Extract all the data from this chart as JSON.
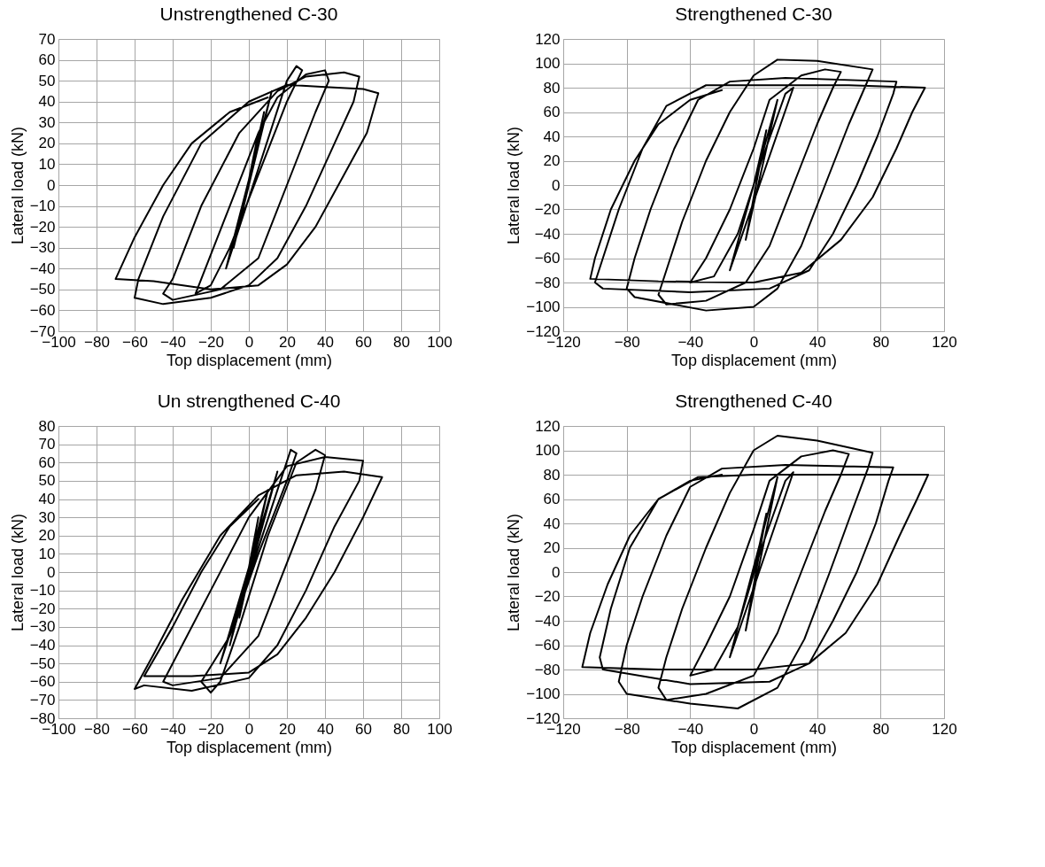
{
  "chart_data": [
    {
      "type": "line",
      "title": "Unstrengthened C-30",
      "xlabel": "Top displacement (mm)",
      "ylabel": "Lateral load (kN)",
      "color": "#000000",
      "grid": true,
      "xlim": [
        -100,
        100
      ],
      "ylim": [
        -70,
        70
      ],
      "xticks": [
        -100,
        -80,
        -60,
        -40,
        -20,
        0,
        20,
        40,
        60,
        80,
        100
      ],
      "yticks": [
        -70,
        -60,
        -50,
        -40,
        -30,
        -20,
        -10,
        0,
        10,
        20,
        30,
        40,
        50,
        60,
        70
      ],
      "x": [
        0,
        5,
        -5,
        8,
        -8,
        12,
        -12,
        20,
        25,
        28,
        20,
        5,
        -10,
        -20,
        -28,
        -25,
        -10,
        5,
        15,
        30,
        40,
        42,
        35,
        20,
        5,
        -15,
        -40,
        -45,
        -40,
        -25,
        -5,
        15,
        30,
        50,
        58,
        55,
        45,
        30,
        15,
        0,
        -20,
        -45,
        -60,
        -58,
        -45,
        -25,
        0,
        20,
        40,
        60,
        68,
        62,
        50,
        35,
        20,
        5,
        -20,
        -50,
        -70,
        -60,
        -45,
        -30,
        -10,
        10
      ],
      "values": [
        0,
        25,
        -20,
        35,
        -30,
        45,
        -40,
        50,
        57,
        55,
        40,
        5,
        -30,
        -48,
        -52,
        -45,
        -10,
        25,
        42,
        53,
        55,
        50,
        35,
        0,
        -35,
        -50,
        -55,
        -52,
        -45,
        -10,
        25,
        45,
        52,
        54,
        52,
        40,
        20,
        -10,
        -35,
        -48,
        -54,
        -57,
        -54,
        -45,
        -15,
        20,
        40,
        48,
        47,
        46,
        44,
        25,
        5,
        -20,
        -38,
        -48,
        -50,
        -46,
        -45,
        -25,
        0,
        20,
        35,
        42
      ]
    },
    {
      "type": "line",
      "title": "Strengthened C-30",
      "xlabel": "Top displacement (mm)",
      "ylabel": "Lateral load (kN)",
      "color": "#000000",
      "grid": true,
      "xlim": [
        -120,
        120
      ],
      "ylim": [
        -120,
        120
      ],
      "xticks": [
        -120,
        -80,
        -40,
        0,
        40,
        80,
        120
      ],
      "yticks": [
        -120,
        -100,
        -80,
        -60,
        -40,
        -20,
        0,
        20,
        40,
        60,
        80,
        100,
        120
      ],
      "x": [
        0,
        8,
        -5,
        15,
        -15,
        25,
        20,
        5,
        -10,
        -25,
        -40,
        -30,
        -15,
        0,
        10,
        30,
        45,
        55,
        50,
        40,
        25,
        10,
        -5,
        -30,
        -55,
        -60,
        -55,
        -45,
        -30,
        -15,
        0,
        15,
        40,
        75,
        70,
        60,
        45,
        30,
        15,
        0,
        -30,
        -75,
        -80,
        -75,
        -65,
        -50,
        -35,
        -15,
        20,
        90,
        88,
        78,
        65,
        50,
        35,
        10,
        -40,
        -95,
        -100,
        -95,
        -85,
        -70,
        -55,
        -30,
        0,
        60,
        108,
        100,
        90,
        75,
        55,
        30,
        0,
        -60,
        -103,
        -100,
        -90,
        -75,
        -60,
        -40,
        -20
      ],
      "values": [
        0,
        45,
        -45,
        70,
        -70,
        80,
        75,
        20,
        -40,
        -75,
        -80,
        -60,
        -20,
        30,
        70,
        90,
        95,
        93,
        80,
        50,
        0,
        -50,
        -80,
        -95,
        -98,
        -90,
        -70,
        -30,
        20,
        60,
        90,
        103,
        102,
        95,
        80,
        50,
        0,
        -50,
        -85,
        -100,
        -103,
        -92,
        -85,
        -60,
        -20,
        30,
        70,
        85,
        88,
        85,
        75,
        40,
        0,
        -40,
        -70,
        -85,
        -88,
        -85,
        -80,
        -60,
        -20,
        30,
        65,
        82,
        82,
        82,
        80,
        60,
        30,
        -10,
        -45,
        -72,
        -80,
        -79,
        -77,
        -60,
        -20,
        20,
        50,
        70,
        78
      ]
    },
    {
      "type": "line",
      "title": "Un strengthened C-40",
      "xlabel": "Top displacement (mm)",
      "ylabel": "Lateral load (kN)",
      "color": "#000000",
      "grid": true,
      "xlim": [
        -100,
        100
      ],
      "ylim": [
        -80,
        80
      ],
      "xticks": [
        -100,
        -80,
        -60,
        -40,
        -20,
        0,
        20,
        40,
        60,
        80,
        100
      ],
      "yticks": [
        -80,
        -70,
        -60,
        -50,
        -40,
        -30,
        -20,
        -10,
        0,
        10,
        20,
        30,
        40,
        50,
        60,
        70,
        80
      ],
      "x": [
        0,
        5,
        -5,
        10,
        -10,
        15,
        -15,
        22,
        25,
        20,
        5,
        -10,
        -25,
        -20,
        -15,
        -5,
        10,
        25,
        35,
        40,
        35,
        20,
        5,
        -15,
        -40,
        -45,
        -35,
        -20,
        0,
        20,
        40,
        60,
        58,
        45,
        30,
        15,
        0,
        -30,
        -55,
        -60,
        -50,
        -35,
        -15,
        5,
        25,
        50,
        70,
        60,
        45,
        30,
        15,
        0,
        -30,
        -55,
        -40,
        -25,
        -10,
        5
      ],
      "values": [
        0,
        30,
        -25,
        45,
        -40,
        55,
        -50,
        67,
        65,
        50,
        10,
        -35,
        -60,
        -66,
        -60,
        -30,
        20,
        60,
        67,
        64,
        45,
        5,
        -35,
        -58,
        -62,
        -60,
        -40,
        -10,
        30,
        58,
        63,
        61,
        50,
        25,
        -10,
        -40,
        -58,
        -65,
        -62,
        -64,
        -45,
        -15,
        20,
        42,
        53,
        55,
        52,
        30,
        0,
        -25,
        -45,
        -55,
        -57,
        -57,
        -30,
        0,
        25,
        40
      ]
    },
    {
      "type": "line",
      "title": "Strengthened C-40",
      "xlabel": "Top displacement (mm)",
      "ylabel": "Lateral load (kN)",
      "color": "#000000",
      "grid": true,
      "xlim": [
        -120,
        120
      ],
      "ylim": [
        -120,
        120
      ],
      "xticks": [
        -120,
        -80,
        -40,
        0,
        40,
        80,
        120
      ],
      "yticks": [
        -120,
        -100,
        -80,
        -60,
        -40,
        -20,
        0,
        20,
        40,
        60,
        80,
        100,
        120
      ],
      "x": [
        0,
        8,
        -5,
        15,
        -15,
        25,
        20,
        5,
        -10,
        -25,
        -40,
        -30,
        -15,
        0,
        10,
        30,
        50,
        60,
        55,
        45,
        30,
        15,
        0,
        -30,
        -55,
        -60,
        -55,
        -45,
        -30,
        -15,
        0,
        15,
        40,
        75,
        72,
        62,
        48,
        32,
        15,
        -10,
        -40,
        -80,
        -85,
        -80,
        -70,
        -55,
        -40,
        -20,
        20,
        88,
        85,
        77,
        65,
        50,
        35,
        10,
        -40,
        -95,
        -97,
        -90,
        -78,
        -60,
        -35,
        0,
        60,
        110,
        103,
        92,
        78,
        58,
        35,
        0,
        -60,
        -108,
        -103,
        -92,
        -78,
        -60,
        -40,
        -20
      ],
      "values": [
        0,
        48,
        -48,
        78,
        -70,
        82,
        75,
        20,
        -45,
        -80,
        -85,
        -60,
        -20,
        35,
        75,
        95,
        100,
        97,
        80,
        50,
        0,
        -50,
        -85,
        -100,
        -105,
        -95,
        -70,
        -30,
        20,
        65,
        100,
        112,
        108,
        98,
        85,
        50,
        0,
        -55,
        -95,
        -112,
        -108,
        -100,
        -90,
        -60,
        -20,
        30,
        70,
        85,
        88,
        86,
        75,
        40,
        0,
        -40,
        -75,
        -90,
        -92,
        -80,
        -70,
        -30,
        20,
        60,
        78,
        80,
        80,
        80,
        60,
        30,
        -10,
        -50,
        -75,
        -80,
        -80,
        -78,
        -50,
        -10,
        30,
        60,
        75,
        80
      ]
    }
  ]
}
